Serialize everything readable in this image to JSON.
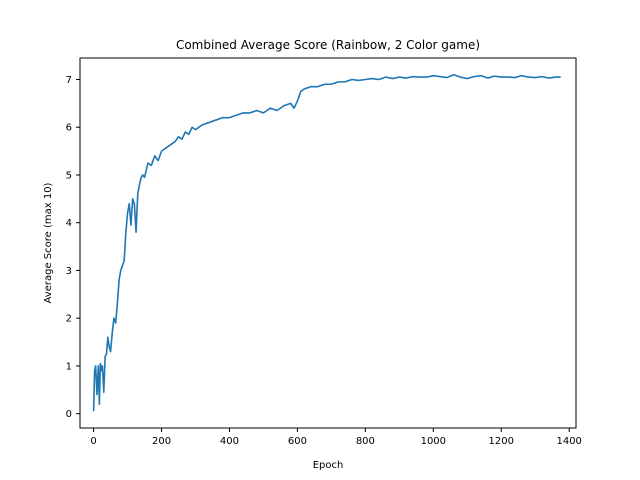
{
  "chart_data": {
    "type": "line",
    "title": "Combined Average Score (Rainbow, 2 Color game)",
    "xlabel": "Epoch",
    "ylabel": "Average Score (max 10)",
    "xlim": [
      -40,
      1420
    ],
    "ylim": [
      -0.3,
      7.45
    ],
    "xticks": [
      0,
      200,
      400,
      600,
      800,
      1000,
      1200,
      1400
    ],
    "yticks": [
      0,
      1,
      2,
      3,
      4,
      5,
      6,
      7
    ],
    "grid": false,
    "series": [
      {
        "color": "#1f77b4",
        "x": [
          0,
          3,
          6,
          10,
          14,
          17,
          20,
          23,
          26,
          30,
          34,
          38,
          42,
          46,
          50,
          55,
          60,
          65,
          70,
          75,
          80,
          85,
          90,
          95,
          100,
          105,
          110,
          115,
          120,
          125,
          130,
          135,
          140,
          145,
          150,
          160,
          170,
          180,
          190,
          200,
          210,
          220,
          230,
          240,
          250,
          260,
          270,
          280,
          290,
          300,
          320,
          340,
          360,
          380,
          400,
          420,
          440,
          460,
          480,
          500,
          520,
          540,
          560,
          580,
          590,
          600,
          610,
          620,
          640,
          660,
          680,
          700,
          720,
          740,
          760,
          780,
          800,
          820,
          840,
          860,
          880,
          900,
          920,
          940,
          960,
          980,
          1000,
          1020,
          1040,
          1060,
          1080,
          1100,
          1120,
          1140,
          1160,
          1180,
          1200,
          1220,
          1240,
          1260,
          1280,
          1300,
          1320,
          1340,
          1360,
          1375
        ],
        "y": [
          0.05,
          0.9,
          1.0,
          0.4,
          1.0,
          0.2,
          1.05,
          0.9,
          1.0,
          0.45,
          1.2,
          1.25,
          1.6,
          1.4,
          1.3,
          1.7,
          2.0,
          1.9,
          2.3,
          2.8,
          3.0,
          3.1,
          3.2,
          3.8,
          4.2,
          4.4,
          3.95,
          4.5,
          4.4,
          3.8,
          4.6,
          4.8,
          4.95,
          5.0,
          4.95,
          5.25,
          5.2,
          5.4,
          5.3,
          5.5,
          5.55,
          5.6,
          5.65,
          5.7,
          5.8,
          5.75,
          5.9,
          5.85,
          6.0,
          5.95,
          6.05,
          6.1,
          6.15,
          6.2,
          6.2,
          6.25,
          6.3,
          6.3,
          6.35,
          6.3,
          6.4,
          6.35,
          6.45,
          6.5,
          6.4,
          6.55,
          6.75,
          6.8,
          6.85,
          6.85,
          6.9,
          6.9,
          6.95,
          6.95,
          7.0,
          6.98,
          7.0,
          7.02,
          7.0,
          7.05,
          7.02,
          7.05,
          7.03,
          7.06,
          7.05,
          7.05,
          7.08,
          7.06,
          7.04,
          7.1,
          7.05,
          7.02,
          7.06,
          7.08,
          7.03,
          7.07,
          7.05,
          7.05,
          7.04,
          7.08,
          7.05,
          7.04,
          7.06,
          7.03,
          7.05,
          7.05
        ]
      }
    ]
  }
}
